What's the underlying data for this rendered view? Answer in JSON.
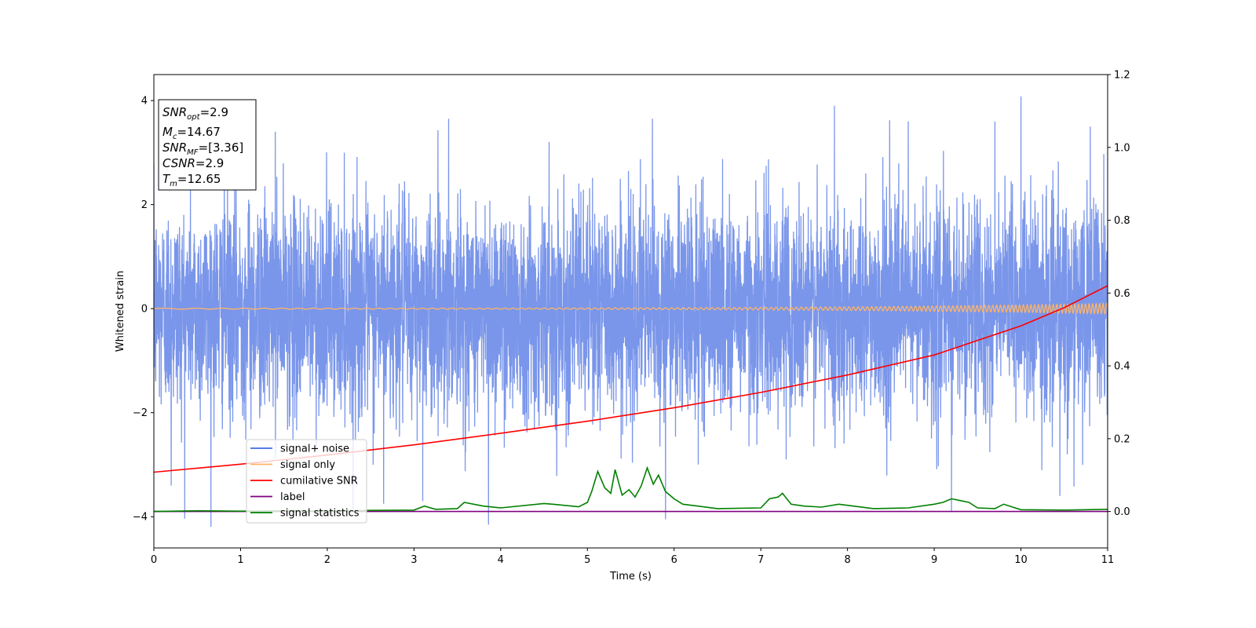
{
  "chart_data": {
    "type": "line",
    "xlabel": "Time (s)",
    "ylabel": "Whitened strain",
    "xlim": [
      0,
      11
    ],
    "ylim": [
      -4.6,
      4.5
    ],
    "y2lim": [
      -0.1,
      1.2
    ],
    "grid": false,
    "xticks": [
      "0",
      "1",
      "2",
      "3",
      "4",
      "5",
      "6",
      "7",
      "8",
      "9",
      "10",
      "11"
    ],
    "yticks": [
      "−4",
      "−2",
      "0",
      "2",
      "4"
    ],
    "y2ticks": [
      "0.0",
      "0.2",
      "0.4",
      "0.6",
      "0.8",
      "1.0",
      "1.2"
    ],
    "annotation": {
      "lines": [
        {
          "base": "SNR",
          "sub": "opt",
          "value": "=2.9"
        },
        {
          "base": "M",
          "sub": "c",
          "value": "=14.67"
        },
        {
          "base": "SNR",
          "sub": "MF",
          "value": "=[3.36]"
        },
        {
          "base": "CSNR",
          "sub": "",
          "value": "=2.9"
        },
        {
          "base": "T",
          "sub": "m",
          "value": "=12.65"
        }
      ]
    },
    "legend": {
      "placement": "lower-left",
      "entries": [
        {
          "label": "signal+ noise",
          "color": "#4169e1"
        },
        {
          "label": "signal only",
          "color": "#ffb466"
        },
        {
          "label": "cumilative SNR",
          "color": "#ff0000"
        },
        {
          "label": "label",
          "color": "#800080"
        },
        {
          "label": "signal statistics",
          "color": "#008000"
        }
      ]
    },
    "series": [
      {
        "name": "signal+ noise",
        "axis": "left",
        "color": "#4169e1",
        "alpha": 0.7,
        "style": "dense-noise",
        "std": 1.0,
        "n_samples": 6000,
        "spikes": [
          {
            "x": 3.86,
            "y": -4.15
          },
          {
            "x": 5.9,
            "y": -4.05
          },
          {
            "x": 9.2,
            "y": -3.9
          },
          {
            "x": 10.0,
            "y": 4.08
          },
          {
            "x": 7.85,
            "y": 3.9
          },
          {
            "x": 3.1,
            "y": -3.7
          },
          {
            "x": 2.65,
            "y": -3.75
          },
          {
            "x": 0.2,
            "y": -3.4
          },
          {
            "x": 10.45,
            "y": -3.6
          },
          {
            "x": 3.4,
            "y": 3.65
          },
          {
            "x": 5.75,
            "y": 3.65
          },
          {
            "x": 8.7,
            "y": 3.6
          },
          {
            "x": 9.7,
            "y": 3.6
          },
          {
            "x": 1.4,
            "y": 3.4
          },
          {
            "x": 10.8,
            "y": 3.5
          }
        ]
      },
      {
        "name": "signal only",
        "axis": "left",
        "color": "#ffb466",
        "style": "chirp",
        "amp_start": 0.01,
        "amp_end": 0.1,
        "freq_start": 2,
        "freq_end": 25
      },
      {
        "name": "cumilative SNR",
        "axis": "right",
        "color": "#ff0000",
        "x": [
          0,
          1,
          2,
          3,
          4,
          5,
          6,
          7,
          8,
          9,
          10,
          10.5,
          11
        ],
        "y": [
          0.108,
          0.13,
          0.155,
          0.183,
          0.215,
          0.248,
          0.285,
          0.327,
          0.375,
          0.43,
          0.51,
          0.56,
          0.62
        ]
      },
      {
        "name": "label",
        "axis": "right",
        "color": "#800080",
        "x": [
          0,
          11
        ],
        "y": [
          0.0,
          0.0
        ]
      },
      {
        "name": "signal statistics",
        "axis": "right",
        "color": "#008000",
        "x": [
          0,
          0.5,
          1.0,
          1.5,
          2.0,
          2.5,
          3.0,
          3.12,
          3.25,
          3.5,
          3.58,
          3.8,
          4.0,
          4.5,
          4.6,
          4.9,
          5.0,
          5.05,
          5.12,
          5.2,
          5.27,
          5.32,
          5.4,
          5.48,
          5.55,
          5.62,
          5.69,
          5.76,
          5.82,
          5.9,
          6.0,
          6.1,
          6.5,
          7.0,
          7.1,
          7.2,
          7.25,
          7.35,
          7.5,
          7.7,
          7.9,
          8.3,
          8.7,
          9.0,
          9.1,
          9.2,
          9.3,
          9.4,
          9.5,
          9.7,
          9.8,
          10.0,
          10.5,
          11.0
        ],
        "y": [
          0.0,
          0.002,
          0.001,
          0.002,
          0.001,
          0.003,
          0.004,
          0.015,
          0.006,
          0.008,
          0.025,
          0.015,
          0.01,
          0.022,
          0.02,
          0.013,
          0.025,
          0.055,
          0.11,
          0.065,
          0.05,
          0.115,
          0.045,
          0.06,
          0.04,
          0.07,
          0.12,
          0.075,
          0.1,
          0.055,
          0.035,
          0.02,
          0.008,
          0.01,
          0.035,
          0.04,
          0.05,
          0.02,
          0.015,
          0.012,
          0.02,
          0.008,
          0.01,
          0.02,
          0.025,
          0.035,
          0.03,
          0.025,
          0.01,
          0.008,
          0.02,
          0.005,
          0.004,
          0.006
        ]
      }
    ]
  }
}
